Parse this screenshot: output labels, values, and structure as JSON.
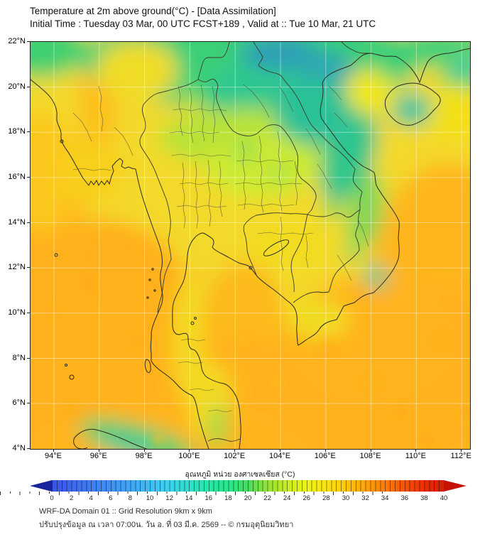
{
  "title": {
    "line1": "Temperature at 2m above ground(°C) - [Data Assimilation]",
    "line2": "Initial Time : Tuesday 03 Mar, 00 UTC FCST+189 , Valid at :: Tue 10 Mar, 21 UTC"
  },
  "map": {
    "lat_ticks": [
      "22°N",
      "20°N",
      "18°N",
      "16°N",
      "14°N",
      "12°N",
      "10°N",
      "8°N",
      "6°N",
      "4°N"
    ],
    "lon_ticks": [
      "94°E",
      "96°E",
      "98°E",
      "100°E",
      "102°E",
      "104°E",
      "106°E",
      "108°E",
      "110°E",
      "112°E"
    ]
  },
  "colorbar": {
    "label": "อุณหภูมิ หน่วย องศาเซลเซียส (°C)",
    "ticks": [
      "0",
      "2",
      "4",
      "6",
      "8",
      "10",
      "12",
      "14",
      "16",
      "18",
      "20",
      "22",
      "24",
      "26",
      "28",
      "30",
      "32",
      "34",
      "36",
      "38",
      "40"
    ],
    "min": 0,
    "max": 40,
    "under_color": "#18249a",
    "over_color": "#c41204",
    "stops": [
      {
        "v": 0,
        "c": "#3a53e8"
      },
      {
        "v": 4,
        "c": "#3f7df2"
      },
      {
        "v": 8,
        "c": "#3fa6f8"
      },
      {
        "v": 12,
        "c": "#3bd3ee"
      },
      {
        "v": 16,
        "c": "#23e7a8"
      },
      {
        "v": 18,
        "c": "#27e68a"
      },
      {
        "v": 20,
        "c": "#45dd5e"
      },
      {
        "v": 22,
        "c": "#92e336"
      },
      {
        "v": 24,
        "c": "#c8ec20"
      },
      {
        "v": 26,
        "c": "#ecf213"
      },
      {
        "v": 28,
        "c": "#fce40d"
      },
      {
        "v": 30,
        "c": "#ffc609"
      },
      {
        "v": 32,
        "c": "#ffa306"
      },
      {
        "v": 34,
        "c": "#ff7d04"
      },
      {
        "v": 36,
        "c": "#fa5202"
      },
      {
        "v": 38,
        "c": "#ec2e02"
      },
      {
        "v": 40,
        "c": "#d51f05"
      }
    ]
  },
  "footer": {
    "line1": "WRF-DA Domain 01 :: Grid Resolution 9km x 9km",
    "line2": "ปรับปรุงข้อมูล ณ เวลา 07:00น. วัน อ. ที่ 03 มี.ค. 2569 -- © กรมอุตุนิยมวิทยา"
  },
  "chart_data": {
    "type": "heatmap",
    "variable": "Temperature at 2m above ground (°C)",
    "lon_range_deg_e": [
      94,
      112
    ],
    "lat_range_deg_n": [
      4,
      22
    ],
    "value_range_c": [
      0,
      40
    ],
    "grid_interval_deg": 2,
    "legend_position": "bottom"
  }
}
